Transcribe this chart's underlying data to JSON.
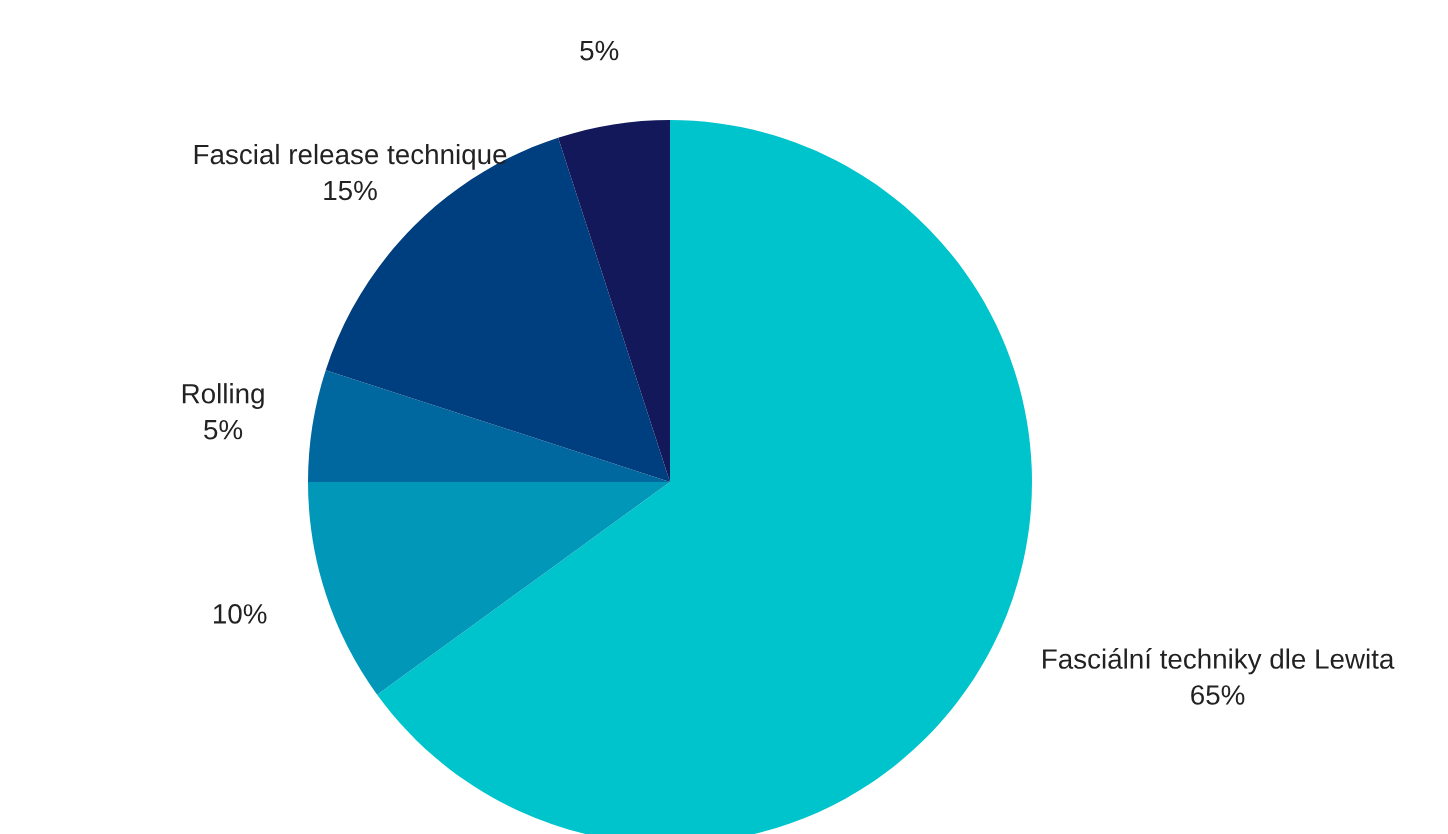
{
  "chart_data": {
    "type": "pie",
    "categories": [
      "Fasciální techniky dle Lewita",
      null,
      "Rolling",
      "Fascial release technique",
      null
    ],
    "values": [
      65,
      10,
      5,
      15,
      5
    ],
    "value_labels": [
      "65%",
      "10%",
      "5%",
      "15%",
      "5%"
    ],
    "colors": [
      "#00c4cc",
      "#0097b9",
      "#00689f",
      "#003f7f",
      "#13185a"
    ],
    "legend": false
  }
}
